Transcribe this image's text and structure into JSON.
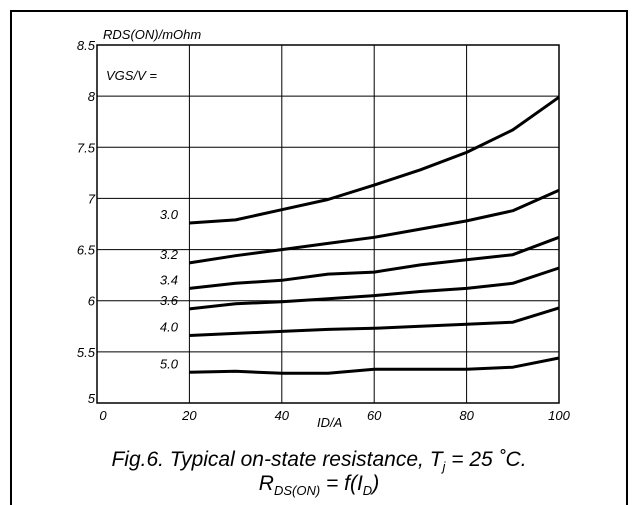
{
  "chart_data": {
    "type": "line",
    "x_axis_label": "ID/A",
    "y_axis_label": "RDS(ON)/mOhm",
    "legend_title": "VGS/V =",
    "xlim": [
      0,
      100
    ],
    "ylim": [
      5,
      8.5
    ],
    "x_ticks": [
      0,
      20,
      40,
      60,
      80,
      100
    ],
    "y_ticks": [
      5,
      5.5,
      6,
      6.5,
      7,
      7.5,
      8,
      8.5
    ],
    "x_tick_labels": [
      "0",
      "20",
      "40",
      "60",
      "80",
      "100"
    ],
    "y_tick_labels": [
      "5",
      "5.5",
      "6",
      "6.5",
      "7",
      "7.5",
      "8",
      "8.5"
    ],
    "grid": true,
    "series": [
      {
        "name": "3.0",
        "x": [
          20,
          30,
          40,
          50,
          60,
          70,
          80,
          90,
          100
        ],
        "y": [
          6.76,
          6.79,
          6.89,
          6.99,
          7.13,
          7.28,
          7.45,
          7.67,
          7.99
        ]
      },
      {
        "name": "3.2",
        "x": [
          20,
          30,
          40,
          50,
          60,
          70,
          80,
          90,
          100
        ],
        "y": [
          6.37,
          6.44,
          6.5,
          6.56,
          6.62,
          6.7,
          6.78,
          6.88,
          7.08
        ]
      },
      {
        "name": "3.4",
        "x": [
          20,
          30,
          40,
          50,
          60,
          70,
          80,
          90,
          100
        ],
        "y": [
          6.12,
          6.17,
          6.2,
          6.26,
          6.28,
          6.35,
          6.4,
          6.45,
          6.62
        ]
      },
      {
        "name": "3.6",
        "x": [
          20,
          30,
          40,
          50,
          60,
          70,
          80,
          90,
          100
        ],
        "y": [
          5.92,
          5.97,
          5.99,
          6.02,
          6.05,
          6.09,
          6.12,
          6.17,
          6.32
        ]
      },
      {
        "name": "4.0",
        "x": [
          20,
          30,
          40,
          50,
          60,
          70,
          80,
          90,
          100
        ],
        "y": [
          5.66,
          5.68,
          5.7,
          5.72,
          5.73,
          5.75,
          5.77,
          5.79,
          5.93
        ]
      },
      {
        "name": "5.0",
        "x": [
          20,
          30,
          40,
          50,
          60,
          70,
          80,
          90,
          100
        ],
        "y": [
          5.3,
          5.31,
          5.29,
          5.29,
          5.33,
          5.33,
          5.33,
          5.35,
          5.44
        ]
      }
    ]
  },
  "caption": {
    "line1_prefix": "Fig.6.   Typical on-state resistance, T",
    "line1_sub": "j",
    "line1_suffix": " = 25 ˚C.",
    "line2_r": "R",
    "line2_r_sub": "DS(ON)",
    "line2_mid": " = f(I",
    "line2_i_sub": "D",
    "line2_end": ")"
  }
}
